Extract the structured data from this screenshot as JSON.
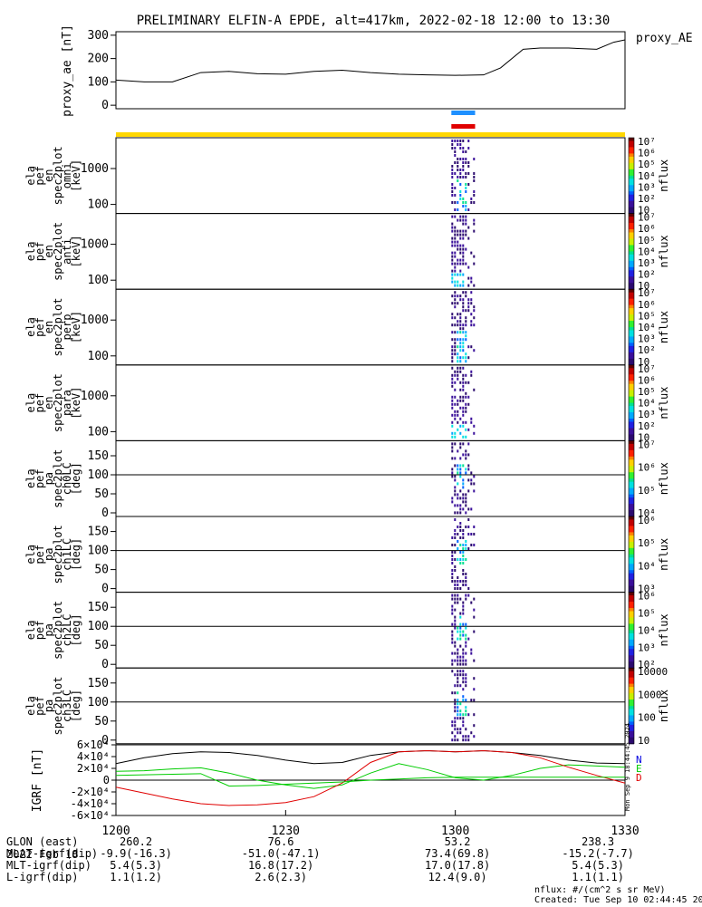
{
  "title": "PRELIMINARY ELFIN-A EPDE, alt=417km, 2022-02-18 12:00 to 13:30",
  "time_axis": {
    "date": "2022 Feb 18",
    "ticks": [
      "1200",
      "1230",
      "1300",
      "1330"
    ]
  },
  "chart_data": [
    {
      "type": "line",
      "id": "proxy_ae",
      "ylabel": "proxy_ae [nT]",
      "legend": "proxy_AE",
      "yticks": [
        "0",
        "100",
        "200",
        "300"
      ],
      "ylim": [
        -15,
        315
      ],
      "x_minutes": [
        0,
        5,
        10,
        15,
        20,
        25,
        30,
        35,
        40,
        45,
        50,
        55,
        60,
        65,
        68,
        72,
        75,
        80,
        85,
        88,
        90
      ],
      "values": [
        108,
        100,
        100,
        140,
        145,
        135,
        133,
        145,
        150,
        140,
        133,
        130,
        128,
        130,
        160,
        240,
        245,
        245,
        240,
        270,
        280
      ]
    },
    {
      "type": "heatmap",
      "id": "omni",
      "ylabel": "ela pef en spec2plot omni [keV]",
      "yticks": [
        "100",
        "1000"
      ],
      "colorbar_label": "nflux",
      "colorbar_ticks": [
        "10",
        "10²",
        "10³",
        "10⁴",
        "10⁵",
        "10⁶",
        "10⁷"
      ]
    },
    {
      "type": "heatmap",
      "id": "anti",
      "ylabel": "ela pef en spec2plot anti [keV]",
      "yticks": [
        "100",
        "1000"
      ],
      "colorbar_label": "nflux",
      "colorbar_ticks": [
        "10",
        "10²",
        "10³",
        "10⁴",
        "10⁵",
        "10⁶",
        "10⁷"
      ]
    },
    {
      "type": "heatmap",
      "id": "perp",
      "ylabel": "ela pef en spec2plot perp [keV]",
      "yticks": [
        "100",
        "1000"
      ],
      "colorbar_label": "nflux",
      "colorbar_ticks": [
        "10",
        "10²",
        "10³",
        "10⁴",
        "10⁵",
        "10⁶",
        "10⁷"
      ]
    },
    {
      "type": "heatmap",
      "id": "para",
      "ylabel": "ela pef en spec2plot para [keV]",
      "yticks": [
        "100",
        "1000"
      ],
      "colorbar_label": "nflux",
      "colorbar_ticks": [
        "10",
        "10²",
        "10³",
        "10⁴",
        "10⁵",
        "10⁶",
        "10⁷"
      ]
    },
    {
      "type": "heatmap",
      "id": "ch0LC",
      "ylabel": "ela pef pa spec2plot ch0LC [deg]",
      "yticks": [
        "0",
        "50",
        "100",
        "150"
      ],
      "colorbar_label": "nflux",
      "colorbar_ticks": [
        "10⁴",
        "10⁵",
        "10⁶",
        "10⁷"
      ]
    },
    {
      "type": "heatmap",
      "id": "ch1LC",
      "ylabel": "ela pef pa spec2plot ch1LC [deg]",
      "yticks": [
        "0",
        "50",
        "100",
        "150"
      ],
      "colorbar_label": "nflux",
      "colorbar_ticks": [
        "10³",
        "10⁴",
        "10⁵",
        "10⁶"
      ]
    },
    {
      "type": "heatmap",
      "id": "ch2LC",
      "ylabel": "ela pef pa spec2plot ch2LC [deg]",
      "yticks": [
        "0",
        "50",
        "100",
        "150"
      ],
      "colorbar_label": "nflux",
      "colorbar_ticks": [
        "10²",
        "10³",
        "10⁴",
        "10⁵",
        "10⁶"
      ]
    },
    {
      "type": "heatmap",
      "id": "ch3LC",
      "ylabel": "ela pef pa spec2plot ch3LC [deg]",
      "yticks": [
        "0",
        "50",
        "100",
        "150"
      ],
      "colorbar_label": "nflux",
      "colorbar_ticks": [
        "10",
        "100",
        "1000",
        "10000"
      ]
    },
    {
      "type": "line",
      "id": "igrf",
      "ylabel": "IGRF [nT]",
      "yticks": [
        "-6×10⁴",
        "-4×10⁴",
        "-2×10⁴",
        "0",
        "2×10⁴",
        "4×10⁴",
        "6×10⁴"
      ],
      "ylim": [
        -60000,
        60000
      ],
      "legend": [
        "N",
        "E",
        "D"
      ],
      "side_note": "Mon Sep  9 18:44:45 2024",
      "x_minutes": [
        0,
        5,
        10,
        15,
        20,
        25,
        30,
        35,
        40,
        45,
        50,
        55,
        60,
        65,
        70,
        75,
        80,
        85,
        90
      ],
      "series": [
        {
          "name": "N",
          "values": [
            28000,
            38000,
            45000,
            48000,
            47000,
            42000,
            34000,
            28000,
            30000,
            42000,
            48000,
            50000,
            48000,
            50000,
            47000,
            42000,
            34000,
            29000,
            28000
          ]
        },
        {
          "name": "E",
          "values": [
            15000,
            16000,
            19000,
            21000,
            12000,
            0,
            -8000,
            -14000,
            -8000,
            12000,
            28000,
            18000,
            4000,
            0,
            8000,
            20000,
            26000,
            24000,
            22000
          ]
        },
        {
          "name": "D",
          "values": [
            -12000,
            -22000,
            -32000,
            -40000,
            -43000,
            -42000,
            -38000,
            -28000,
            -5000,
            30000,
            48000,
            50000,
            48000,
            50000,
            47000,
            38000,
            22000,
            8000,
            -5000
          ]
        },
        {
          "name": "E2",
          "values": [
            8000,
            9000,
            10000,
            11000,
            -10000,
            -9000,
            -7000,
            -5000,
            -3000,
            0,
            2000,
            4000,
            5000,
            5000,
            5000,
            5000,
            5000,
            5000,
            5000
          ]
        }
      ]
    }
  ],
  "flags": {
    "blue_bar": [
      59.3,
      63.5
    ],
    "red_bar": [
      59.3,
      63.5
    ],
    "yellow_bar": [
      0,
      90
    ]
  },
  "footer": {
    "rows": [
      {
        "label": "GLON (east)",
        "values": [
          "260.2",
          "76.6",
          "53.2",
          "238.3"
        ]
      },
      {
        "label": "MLAT-igrf(dip)",
        "values": [
          "-9.9(-16.3)",
          "-51.0(-47.1)",
          "73.4(69.8)",
          "-15.2(-7.7)"
        ]
      },
      {
        "label": "MLT-igrf(dip)",
        "values": [
          "5.4(5.3)",
          "16.8(17.2)",
          "17.0(17.8)",
          "5.4(5.3)"
        ]
      },
      {
        "label": "L-igrf(dip)",
        "values": [
          "1.1(1.2)",
          "2.6(2.3)",
          "12.4(9.0)",
          "1.1(1.1)"
        ]
      }
    ],
    "units_note": "nflux: #/(cm^2 s sr MeV)",
    "created": "Created: Tue Sep 10 02:44:45 2024"
  },
  "colors": {
    "N": "#000000",
    "E": "#00cc00",
    "D": "#e00000",
    "E2": "#00cc00",
    "N_label": "#0000e0",
    "blue_bar": "#1e90ff",
    "red_bar": "#e00000",
    "yellow_bar": "#ffd700"
  }
}
